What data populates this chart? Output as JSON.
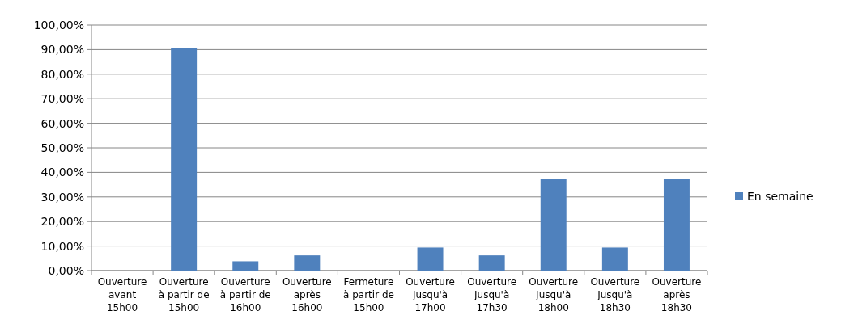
{
  "chart_data": {
    "type": "bar",
    "categories": [
      "Ouverture avant 15h00",
      "Ouverture à partir de 15h00",
      "Ouverture à partir de 16h00",
      "Ouverture après 16h00",
      "Fermeture à partir de 15h00",
      "Ouverture Jusqu'à 17h00",
      "Ouverture Jusqu'à 17h30",
      "Ouverture Jusqu'à 18h00",
      "Ouverture Jusqu'à 18h30",
      "Ouverture après 18h30"
    ],
    "series": [
      {
        "name": "En semaine",
        "color": "#4f81bd",
        "values": [
          0,
          90.6,
          3.8,
          6.2,
          0,
          9.4,
          6.2,
          37.5,
          9.4,
          37.5
        ]
      }
    ],
    "ylim": [
      0,
      100
    ],
    "yticks": [
      {
        "value": 0,
        "label": "0,00%"
      },
      {
        "value": 10,
        "label": "10,00%"
      },
      {
        "value": 20,
        "label": "20,00%"
      },
      {
        "value": 30,
        "label": "30,00%"
      },
      {
        "value": 40,
        "label": "40,00%"
      },
      {
        "value": 50,
        "label": "50,00%"
      },
      {
        "value": 60,
        "label": "60,00%"
      },
      {
        "value": 70,
        "label": "70,00%"
      },
      {
        "value": 80,
        "label": "80,00%"
      },
      {
        "value": 90,
        "label": "90,00%"
      },
      {
        "value": 100,
        "label": "100,00%"
      }
    ],
    "grid": "y",
    "legend": "right"
  }
}
